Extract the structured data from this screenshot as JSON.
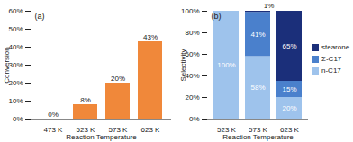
{
  "chart_data": [
    {
      "type": "bar",
      "title": "(a)",
      "x_label": "Reaction Temperature",
      "y_label": "Conversion",
      "categories": [
        "473 K",
        "523 K",
        "573 K",
        "623 K"
      ],
      "values": [
        0,
        8,
        20,
        43
      ],
      "value_labels": [
        "0%",
        "8%",
        "20%",
        "43%"
      ],
      "data_labels": true,
      "color": "#f0883a",
      "ylim": [
        0,
        60
      ],
      "yticks": [
        {
          "value": 0,
          "label": "0%"
        },
        {
          "value": 10,
          "label": "10%"
        },
        {
          "value": 20,
          "label": "20%"
        },
        {
          "value": 30,
          "label": "30%"
        },
        {
          "value": 40,
          "label": "40%"
        },
        {
          "value": 50,
          "label": "50%"
        },
        {
          "value": 60,
          "label": "60%"
        }
      ],
      "grid": false
    },
    {
      "type": "bar",
      "title": "(b)",
      "stacked": true,
      "x_label": "Reaction Temperature",
      "y_label": "Selectivity",
      "categories": [
        "523 K",
        "573 K",
        "623 K"
      ],
      "series": [
        {
          "name": "n-C17",
          "color": "#9ec3ec",
          "values": [
            100,
            58,
            20
          ],
          "value_labels": [
            "100%",
            "58%",
            "20%"
          ]
        },
        {
          "name": "Σ-C17",
          "color": "#4a80cc",
          "values": [
            0,
            41,
            15
          ],
          "value_labels": [
            null,
            "41%",
            "15%"
          ]
        },
        {
          "name": "stearone",
          "color": "#1b2f7a",
          "values": [
            0,
            1,
            65
          ],
          "value_labels": [
            null,
            "1%",
            "65%"
          ]
        }
      ],
      "data_labels": true,
      "legend": "right",
      "ylim": [
        0,
        100
      ],
      "yticks": [
        {
          "value": 0,
          "label": "0%"
        },
        {
          "value": 20,
          "label": "20%"
        },
        {
          "value": 40,
          "label": "40%"
        },
        {
          "value": 60,
          "label": "60%"
        },
        {
          "value": 80,
          "label": "80%"
        },
        {
          "value": 100,
          "label": "100%"
        }
      ],
      "grid": false
    }
  ]
}
